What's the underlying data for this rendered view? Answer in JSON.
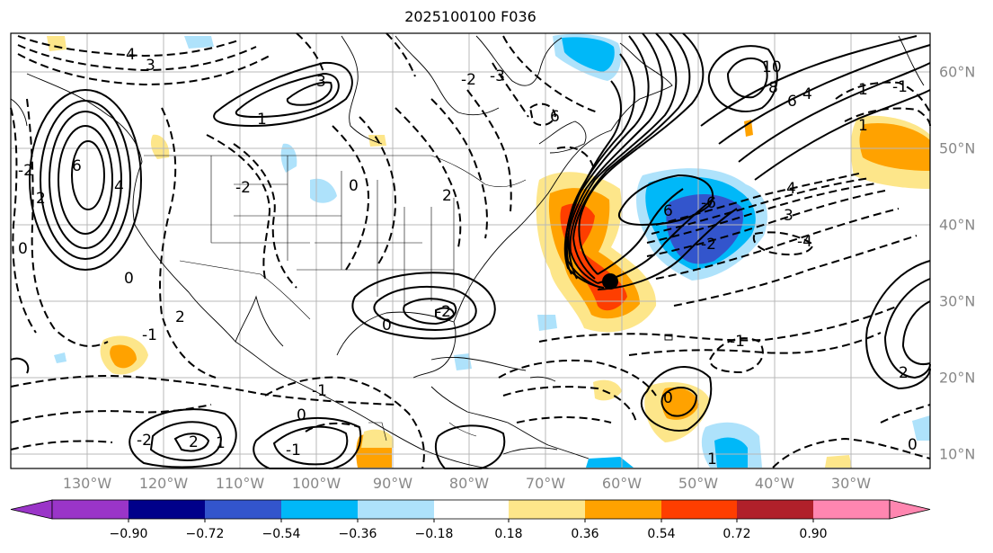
{
  "title": "2025100100 F036",
  "map": {
    "lon_labels": [
      "130°W",
      "120°W",
      "110°W",
      "100°W",
      "90°W",
      "80°W",
      "70°W",
      "60°W",
      "50°W",
      "40°W",
      "30°W"
    ],
    "lat_labels": [
      "60°N",
      "50°N",
      "40°N",
      "30°N",
      "20°N",
      "10°N"
    ],
    "storm_marker": {
      "lon": -61,
      "lat": 32.5
    },
    "contour_labels": [
      "4",
      "3",
      "6",
      "4",
      "2",
      "0",
      "3",
      "-2",
      "0",
      "2",
      "-2",
      "1",
      "0",
      "-1",
      "6",
      "8",
      "10",
      "6",
      "4",
      "1",
      "2",
      "-1",
      "-2",
      "6",
      "-2",
      "-4",
      "3",
      "-3",
      "4",
      "-6",
      "1",
      "-2",
      "0",
      "-1",
      "-2",
      "2",
      "1",
      "0",
      "-1",
      "2",
      "0",
      "1",
      "0",
      "-1"
    ]
  },
  "colorbar": {
    "tick_labels": [
      "−0.90",
      "−0.72",
      "−0.54",
      "−0.36",
      "−0.18",
      "0.18",
      "0.36",
      "0.54",
      "0.72",
      "0.90"
    ],
    "colors": [
      "#9a35c8",
      "#00008a",
      "#3355cc",
      "#00b8f8",
      "#aee2fb",
      "#ffffff",
      "#fde68a",
      "#ffa200",
      "#fe3e00",
      "#b0202a",
      "#ff86b0"
    ],
    "under_color": "#9a35c8",
    "over_color": "#ff86b0"
  }
}
